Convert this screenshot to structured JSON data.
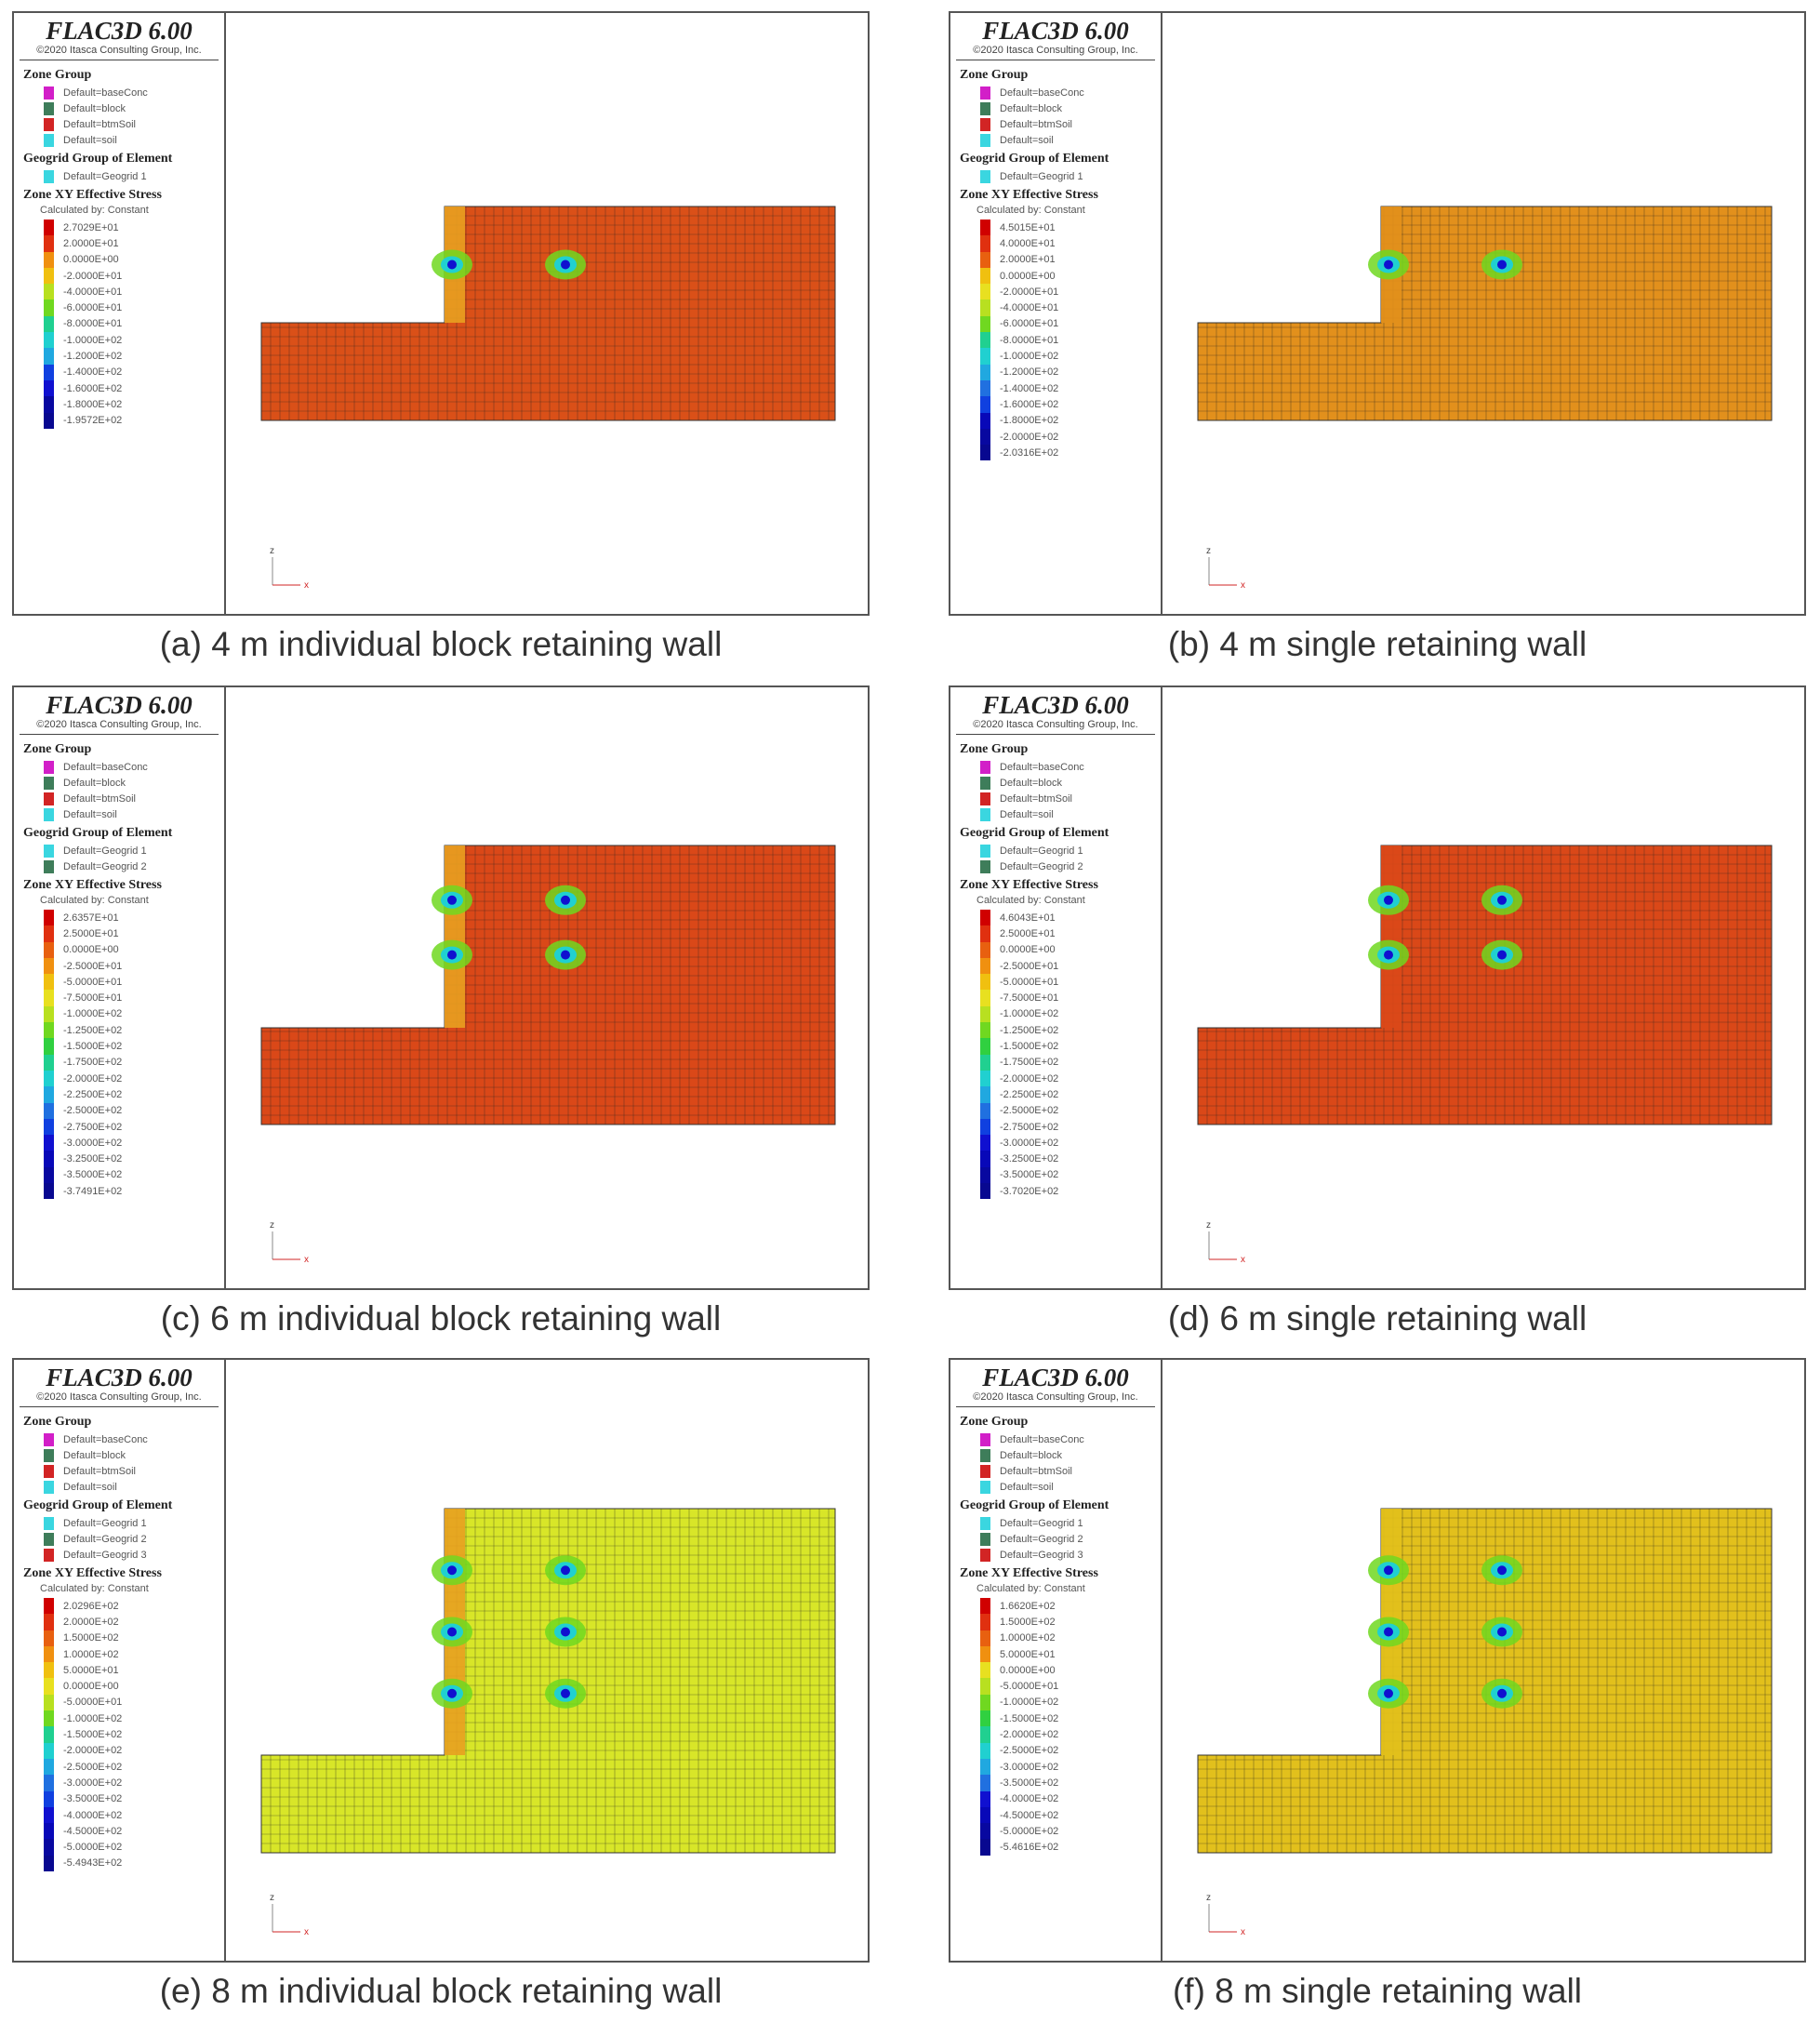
{
  "figure": {
    "brand": "FLAC3D 6.00",
    "copyright": "©2020 Itasca Consulting Group, Inc.",
    "zone_group_title": "Zone Group",
    "zone_groups": [
      {
        "label": "Default=baseConc",
        "color": "#d21fc8"
      },
      {
        "label": "Default=block",
        "color": "#3e7d5a"
      },
      {
        "label": "Default=btmSoil",
        "color": "#d22424"
      },
      {
        "label": "Default=soil",
        "color": "#3ad6e0"
      }
    ],
    "geogrid_title": "Geogrid Group of Element",
    "stress_title": "Zone XY Effective Stress",
    "stress_subtitle": "Calculated by: Constant",
    "axis_z": "z",
    "axis_x": "x"
  },
  "panels": [
    {
      "caption": "(a) 4 m individual block retaining wall",
      "geogrids": [
        {
          "label": "Default=Geogrid 1",
          "color": "#3ad6e0"
        }
      ],
      "contour": [
        "2.7029E+01",
        "2.0000E+01",
        "0.0000E+00",
        "-2.0000E+01",
        "-4.0000E+01",
        "-6.0000E+01",
        "-8.0000E+01",
        "-1.0000E+02",
        "-1.2000E+02",
        "-1.4000E+02",
        "-1.6000E+02",
        "-1.8000E+02",
        "-1.9572E+02"
      ],
      "base_color": "#da5018",
      "wall_height_m": 4,
      "wall_type": "block",
      "hotspots": [
        0.5
      ]
    },
    {
      "caption": "(b) 4 m single retaining wall",
      "geogrids": [
        {
          "label": "Default=Geogrid 1",
          "color": "#3ad6e0"
        }
      ],
      "contour": [
        "4.5015E+01",
        "4.0000E+01",
        "2.0000E+01",
        "0.0000E+00",
        "-2.0000E+01",
        "-4.0000E+01",
        "-6.0000E+01",
        "-8.0000E+01",
        "-1.0000E+02",
        "-1.2000E+02",
        "-1.4000E+02",
        "-1.6000E+02",
        "-1.8000E+02",
        "-2.0000E+02",
        "-2.0316E+02"
      ],
      "base_color": "#e2901c",
      "wall_height_m": 4,
      "wall_type": "single",
      "hotspots": [
        0.5
      ]
    },
    {
      "caption": "(c) 6 m individual block retaining wall",
      "geogrids": [
        {
          "label": "Default=Geogrid 1",
          "color": "#3ad6e0"
        },
        {
          "label": "Default=Geogrid 2",
          "color": "#3e7d5a"
        }
      ],
      "contour": [
        "2.6357E+01",
        "2.5000E+01",
        "0.0000E+00",
        "-2.5000E+01",
        "-5.0000E+01",
        "-7.5000E+01",
        "-1.0000E+02",
        "-1.2500E+02",
        "-1.5000E+02",
        "-1.7500E+02",
        "-2.0000E+02",
        "-2.2500E+02",
        "-2.5000E+02",
        "-2.7500E+02",
        "-3.0000E+02",
        "-3.2500E+02",
        "-3.5000E+02",
        "-3.7491E+02"
      ],
      "base_color": "#da4818",
      "wall_height_m": 6,
      "wall_type": "block",
      "hotspots": [
        0.3,
        0.6
      ]
    },
    {
      "caption": "(d) 6 m single retaining wall",
      "geogrids": [
        {
          "label": "Default=Geogrid 1",
          "color": "#3ad6e0"
        },
        {
          "label": "Default=Geogrid 2",
          "color": "#3e7d5a"
        }
      ],
      "contour": [
        "4.6043E+01",
        "2.5000E+01",
        "0.0000E+00",
        "-2.5000E+01",
        "-5.0000E+01",
        "-7.5000E+01",
        "-1.0000E+02",
        "-1.2500E+02",
        "-1.5000E+02",
        "-1.7500E+02",
        "-2.0000E+02",
        "-2.2500E+02",
        "-2.5000E+02",
        "-2.7500E+02",
        "-3.0000E+02",
        "-3.2500E+02",
        "-3.5000E+02",
        "-3.7020E+02"
      ],
      "base_color": "#da4818",
      "wall_height_m": 6,
      "wall_type": "single",
      "hotspots": [
        0.3,
        0.6
      ]
    },
    {
      "caption": "(e) 8 m individual block retaining wall",
      "geogrids": [
        {
          "label": "Default=Geogrid 1",
          "color": "#3ad6e0"
        },
        {
          "label": "Default=Geogrid 2",
          "color": "#3e7d5a"
        },
        {
          "label": "Default=Geogrid 3",
          "color": "#d22424"
        }
      ],
      "contour": [
        "2.0296E+02",
        "2.0000E+02",
        "1.5000E+02",
        "1.0000E+02",
        "5.0000E+01",
        "0.0000E+00",
        "-5.0000E+01",
        "-1.0000E+02",
        "-1.5000E+02",
        "-2.0000E+02",
        "-2.5000E+02",
        "-3.0000E+02",
        "-3.5000E+02",
        "-4.0000E+02",
        "-4.5000E+02",
        "-5.0000E+02",
        "-5.4943E+02"
      ],
      "base_color": "#d8e628",
      "wall_height_m": 8,
      "wall_type": "block",
      "hotspots": [
        0.25,
        0.5,
        0.75
      ]
    },
    {
      "caption": "(f) 8 m single retaining wall",
      "geogrids": [
        {
          "label": "Default=Geogrid 1",
          "color": "#3ad6e0"
        },
        {
          "label": "Default=Geogrid 2",
          "color": "#3e7d5a"
        },
        {
          "label": "Default=Geogrid 3",
          "color": "#d22424"
        }
      ],
      "contour": [
        "1.6620E+02",
        "1.5000E+02",
        "1.0000E+02",
        "5.0000E+01",
        "0.0000E+00",
        "-5.0000E+01",
        "-1.0000E+02",
        "-1.5000E+02",
        "-2.0000E+02",
        "-2.5000E+02",
        "-3.0000E+02",
        "-3.5000E+02",
        "-4.0000E+02",
        "-4.5000E+02",
        "-5.0000E+02",
        "-5.4616E+02"
      ],
      "base_color": "#e2c01c",
      "wall_height_m": 8,
      "wall_type": "single",
      "hotspots": [
        0.25,
        0.5,
        0.75
      ]
    }
  ]
}
